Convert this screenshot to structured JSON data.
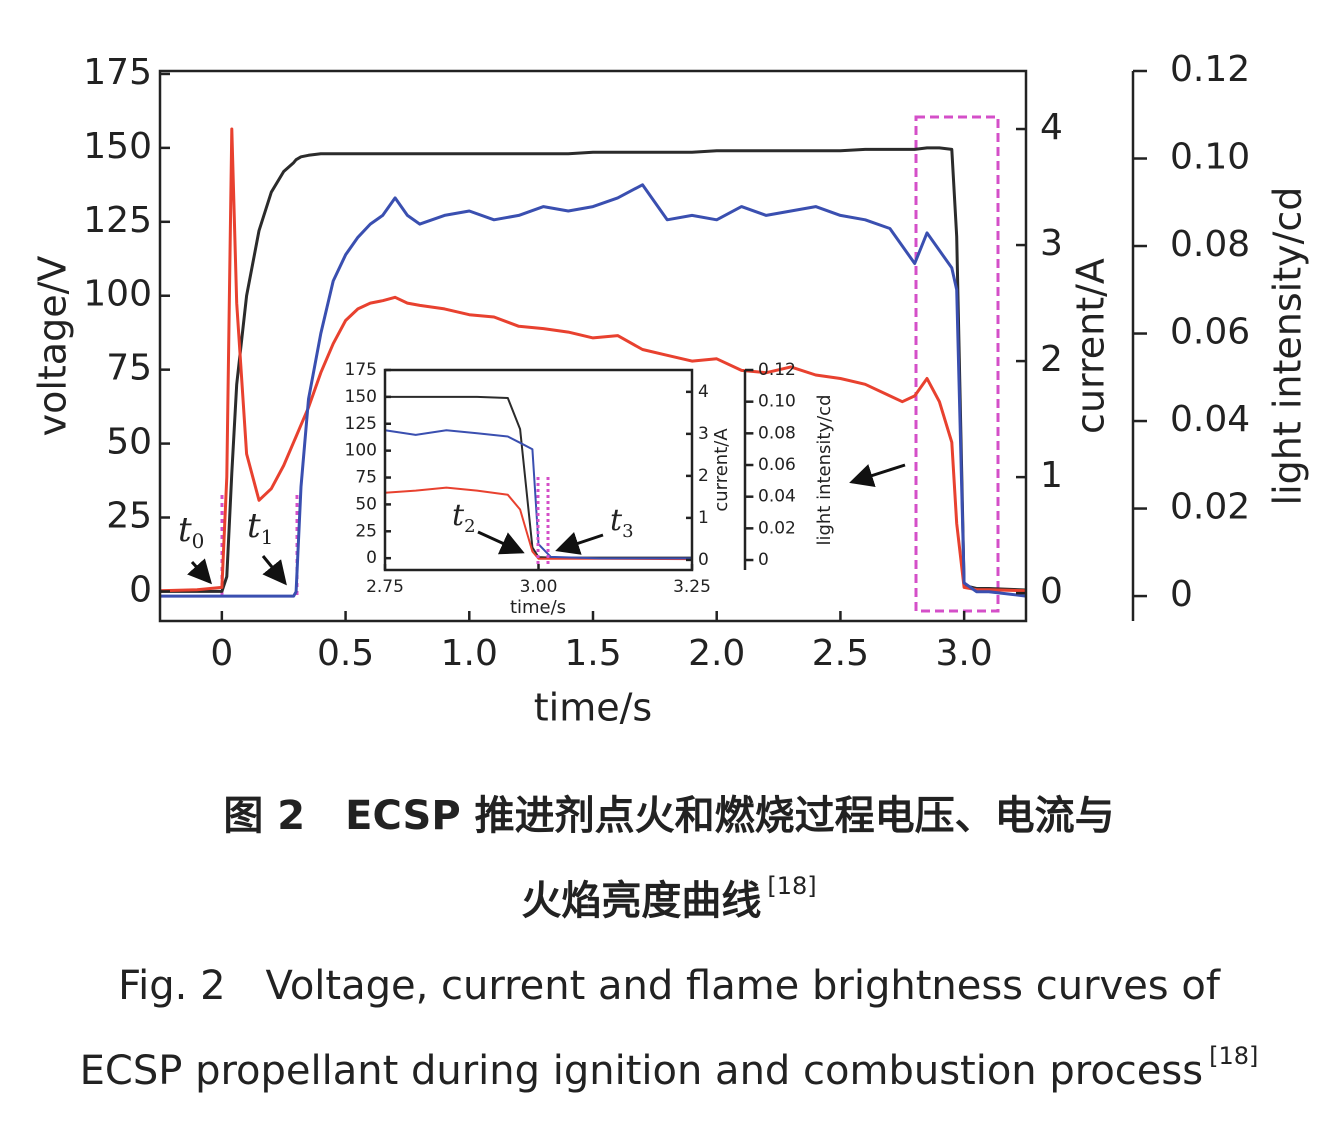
{
  "chart_data": [
    {
      "type": "line",
      "x": [
        -0.25,
        -0.1,
        0,
        0.02,
        0.04,
        0.06,
        0.1,
        0.15,
        0.2,
        0.25,
        0.29,
        0.3,
        0.32,
        0.35,
        0.4,
        0.45,
        0.5,
        0.55,
        0.6,
        0.65,
        0.7,
        0.75,
        0.8,
        0.9,
        1.0,
        1.1,
        1.2,
        1.3,
        1.4,
        1.5,
        1.6,
        1.7,
        1.8,
        1.9,
        2.0,
        2.1,
        2.2,
        2.3,
        2.4,
        2.5,
        2.6,
        2.7,
        2.75,
        2.8,
        2.85,
        2.9,
        2.95,
        2.97,
        3.0,
        3.05,
        3.1,
        3.25
      ],
      "series": [
        {
          "color": "#2b2b2b",
          "values": [
            0,
            0,
            0,
            5,
            40,
            70,
            100,
            122,
            135,
            142,
            145,
            146,
            147,
            147.5,
            148,
            148,
            148,
            148,
            148,
            148,
            148,
            148,
            148,
            148,
            148,
            148,
            148,
            148,
            148,
            148.5,
            148.5,
            148.5,
            148.5,
            148.5,
            149,
            149,
            149,
            149,
            149,
            149,
            149.5,
            149.5,
            149.5,
            149.5,
            150,
            150,
            149.5,
            120,
            2,
            1,
            1,
            0.5
          ]
        },
        {
          "color": "#e8412f",
          "axis": "y2",
          "values": [
            0.02,
            0.03,
            0.05,
            1.0,
            4.0,
            2.5,
            1.2,
            0.8,
            0.9,
            1.1,
            1.3,
            1.35,
            1.45,
            1.6,
            1.9,
            2.15,
            2.35,
            2.45,
            2.5,
            2.52,
            2.55,
            2.5,
            2.48,
            2.45,
            2.4,
            2.38,
            2.3,
            2.28,
            2.25,
            2.2,
            2.22,
            2.1,
            2.05,
            2.0,
            2.02,
            1.92,
            1.9,
            1.95,
            1.88,
            1.85,
            1.8,
            1.7,
            1.65,
            1.7,
            1.85,
            1.65,
            1.3,
            0.6,
            0.05,
            0.03,
            0.03,
            0.02
          ]
        },
        {
          "color": "#3a4fb0",
          "axis": "y3",
          "values": [
            0,
            0,
            0,
            0,
            0,
            0,
            0,
            0,
            0,
            0,
            0,
            0.001,
            0.025,
            0.045,
            0.06,
            0.072,
            0.078,
            0.082,
            0.085,
            0.087,
            0.091,
            0.087,
            0.085,
            0.087,
            0.088,
            0.086,
            0.087,
            0.089,
            0.088,
            0.089,
            0.091,
            0.094,
            0.086,
            0.087,
            0.086,
            0.089,
            0.087,
            0.088,
            0.089,
            0.087,
            0.086,
            0.084,
            0.08,
            0.076,
            0.083,
            0.079,
            0.075,
            0.07,
            0.003,
            0.001,
            0.001,
            0
          ]
        }
      ],
      "xlim": [
        -0.25,
        3.25
      ],
      "xticks": [
        0,
        0.5,
        {
          "value": 1,
          "label": "1.0"
        },
        1.5,
        {
          "value": 2,
          "label": "2.0"
        },
        2.5,
        {
          "value": 3,
          "label": "3.0"
        }
      ],
      "ylim": [
        -10,
        176
      ],
      "yticks": [
        0,
        25,
        50,
        75,
        100,
        125,
        150,
        175
      ],
      "y2lim": [
        -0.24,
        4.5
      ],
      "y2ticks": [
        0,
        1,
        2,
        3,
        4
      ],
      "y3lim": [
        -0.0057,
        0.12
      ],
      "y3ticks": [
        0,
        0.02,
        0.04,
        0.06,
        0.08,
        {
          "value": 0.1,
          "label": "0.10"
        },
        0.12
      ],
      "xlabel": "time/s",
      "ylabel": "voltage/V",
      "y2label": "current/A",
      "y3label": "light intensity/cd",
      "annotations": [
        {
          "text": "t",
          "subscript": "0"
        },
        {
          "text": "t",
          "subscript": "1"
        }
      ]
    },
    {
      "type": "line",
      "x": [
        2.75,
        2.8,
        2.85,
        2.9,
        2.95,
        2.97,
        2.99,
        3.0,
        3.02,
        3.1,
        3.25
      ],
      "series": [
        {
          "color": "#2b2b2b",
          "values": [
            150,
            150,
            150,
            150,
            149,
            120,
            10,
            1,
            0.5,
            0.5,
            0.5
          ]
        },
        {
          "color": "#e8412f",
          "axis": "y2",
          "values": [
            1.6,
            1.65,
            1.72,
            1.65,
            1.55,
            1.2,
            0.2,
            0.03,
            0.03,
            0.03,
            0.02
          ]
        },
        {
          "color": "#3a4fb0",
          "axis": "y3",
          "values": [
            0.082,
            0.079,
            0.082,
            0.08,
            0.078,
            0.074,
            0.07,
            0.01,
            0.002,
            0.001,
            0.001
          ]
        }
      ],
      "xlim": [
        2.75,
        3.25
      ],
      "xticks": [
        {
          "value": 2.75,
          "label": "2.75"
        },
        {
          "value": 3,
          "label": "3.00"
        },
        {
          "value": 3.25,
          "label": "3.25"
        }
      ],
      "ylim": [
        -11,
        175
      ],
      "yticks": [
        0,
        25,
        50,
        75,
        100,
        125,
        150,
        175
      ],
      "y2lim": [
        -0.24,
        4.52
      ],
      "y2ticks": [
        0,
        1,
        2,
        3,
        4
      ],
      "y3lim": [
        -0.0063,
        0.12
      ],
      "y3ticks": [
        0,
        0.02,
        0.04,
        0.06,
        0.08,
        {
          "value": 0.1,
          "label": "0.10"
        },
        0.12
      ],
      "xlabel": "time/s",
      "y2label": "current/A",
      "y3label": "light intensity/cd",
      "annotations": [
        {
          "text": "t",
          "subscript": "2"
        },
        {
          "text": "t",
          "subscript": "3"
        }
      ]
    }
  ],
  "caption": {
    "zh": [
      "图 2　ECSP 推进剂点火和燃烧过程电压、电流与",
      "火焰亮度曲线"
    ],
    "zh_ref": "[18]",
    "en": [
      "Fig. 2　Voltage, current and flame brightness curves of",
      "ECSP propellant during ignition and combustion process"
    ],
    "en_ref": "[18]"
  }
}
